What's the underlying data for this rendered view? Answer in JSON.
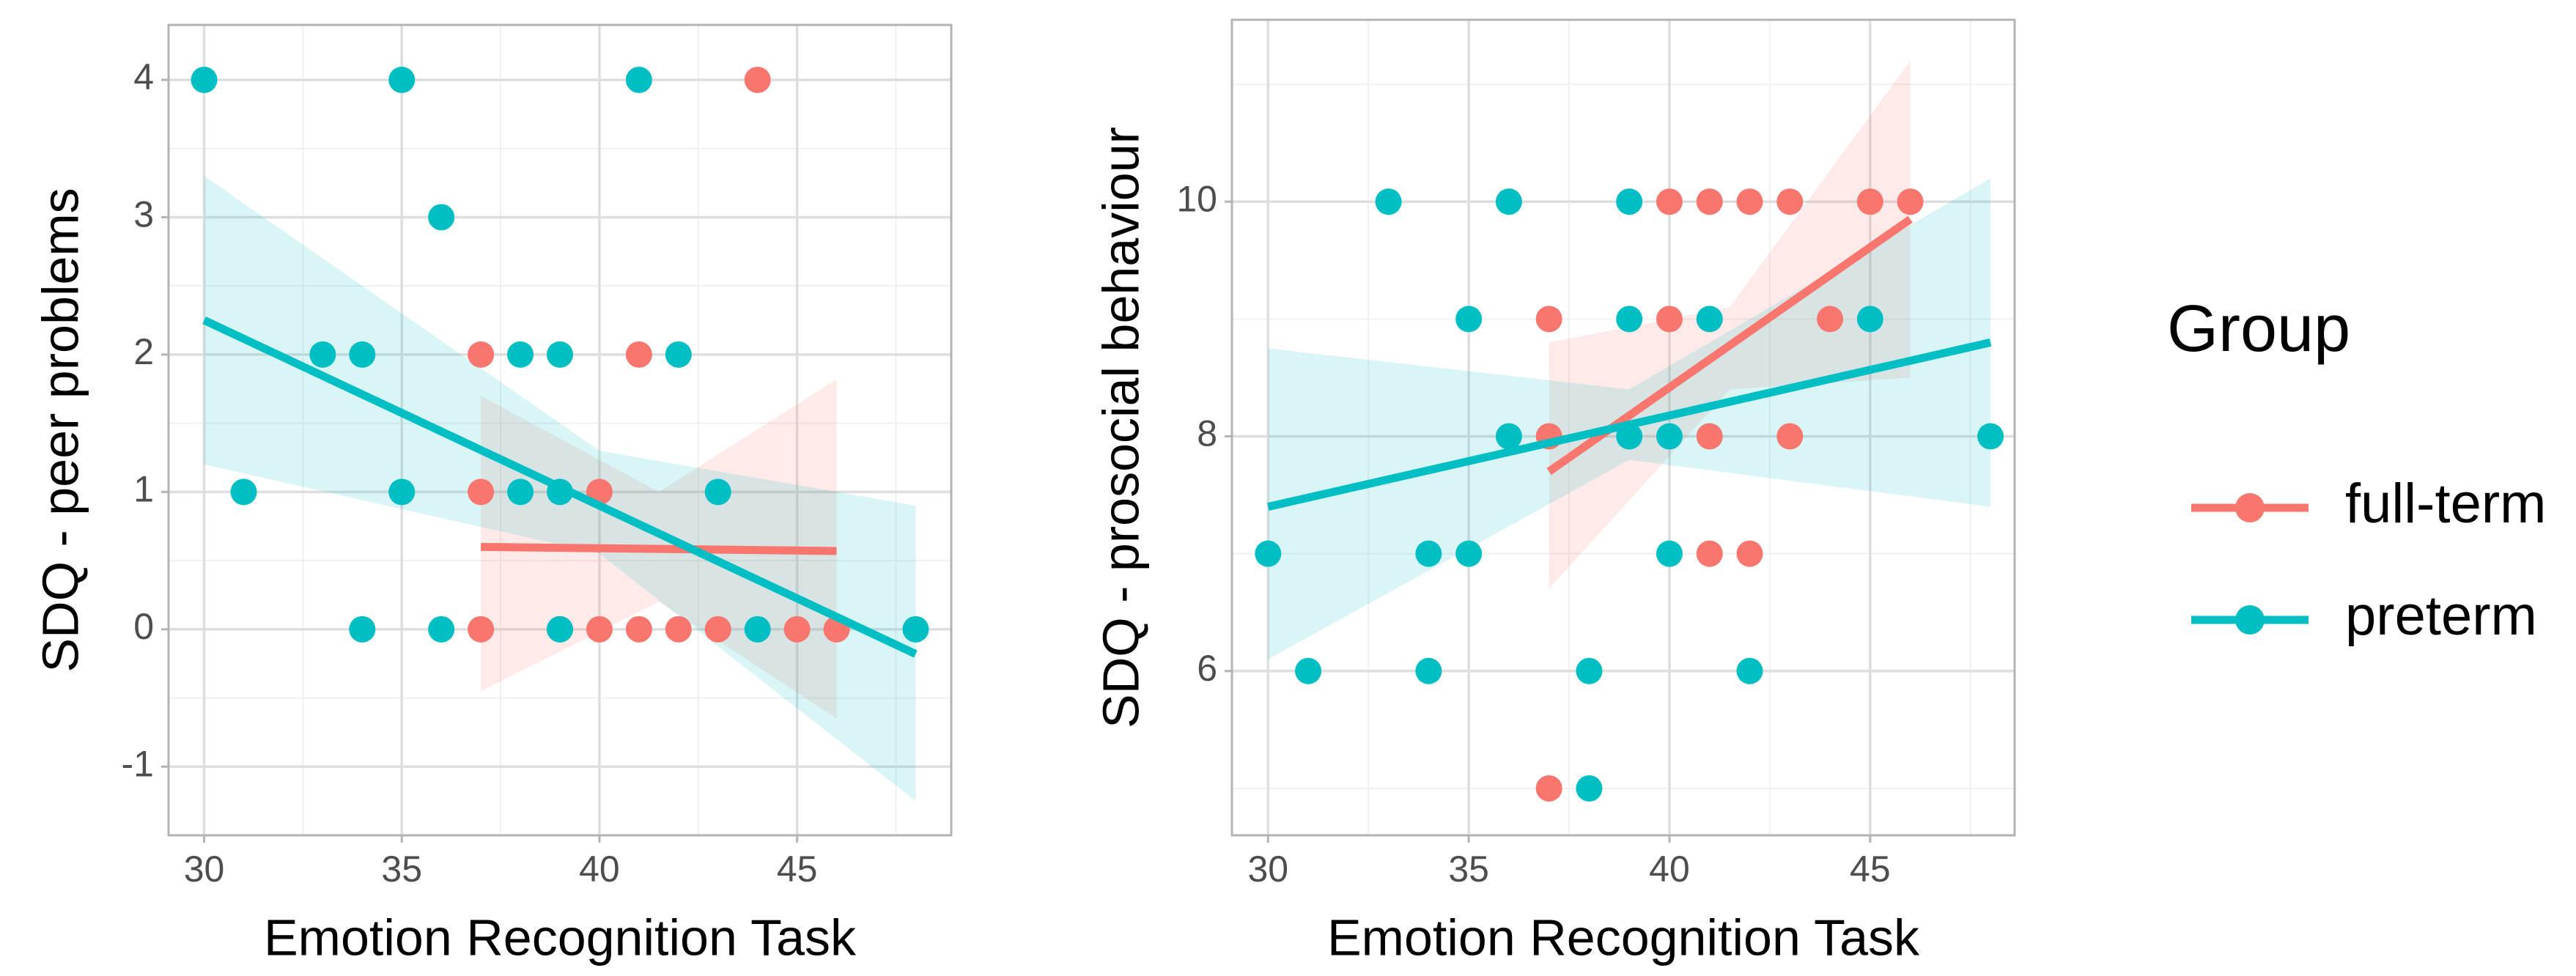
{
  "chart_data": [
    {
      "type": "scatter",
      "x_label": "Emotion Recognition Task",
      "y_label": "SDQ - peer problems",
      "xlim": [
        29.1,
        48.9
      ],
      "ylim": [
        -1.5,
        4.4
      ],
      "xticks": [
        30,
        35,
        40,
        45
      ],
      "yticks": [
        -1,
        0,
        1,
        2,
        3,
        4
      ],
      "grid": true,
      "series": [
        {
          "color": "#F8766D",
          "x": [
            44,
            37,
            41,
            37,
            40,
            37,
            39,
            40,
            41,
            42,
            43,
            45,
            46
          ],
          "y": [
            4,
            2,
            2,
            1,
            1,
            0,
            0,
            0,
            0,
            0,
            0,
            0,
            0
          ],
          "fit": {
            "x": [
              37,
              46
            ],
            "y": [
              0.6,
              0.57
            ]
          },
          "band": {
            "x": [
              37,
              41.5,
              46
            ],
            "lower": [
              -0.45,
              0.2,
              -0.65
            ],
            "upper": [
              1.7,
              1.0,
              1.82
            ]
          }
        },
        {
          "color": "#00BFC4",
          "x": [
            30,
            35,
            41,
            36,
            33,
            34,
            38,
            39,
            42,
            31,
            35,
            38,
            39,
            43,
            34,
            36,
            39,
            44,
            48
          ],
          "y": [
            4,
            4,
            4,
            3,
            2,
            2,
            2,
            2,
            2,
            1,
            1,
            1,
            1,
            1,
            0,
            0,
            0,
            0,
            0
          ],
          "fit": {
            "x": [
              30,
              48
            ],
            "y": [
              2.25,
              -0.18
            ]
          },
          "band": {
            "x": [
              30,
              40,
              48
            ],
            "lower": [
              1.2,
              0.55,
              -1.25
            ],
            "upper": [
              3.3,
              1.3,
              0.9
            ]
          }
        }
      ]
    },
    {
      "type": "scatter",
      "x_label": "Emotion Recognition Task",
      "y_label": "SDQ - prosocial behaviour",
      "xlim": [
        29.1,
        48.6
      ],
      "ylim": [
        4.6,
        11.55
      ],
      "xticks": [
        30,
        35,
        40,
        45
      ],
      "yticks": [
        6,
        8,
        10
      ],
      "grid": true,
      "legend_title": "Group",
      "legend_position": "right",
      "series": [
        {
          "name": "full-term",
          "color": "#F8766D",
          "x": [
            37,
            37,
            37,
            40,
            41,
            42,
            43,
            45,
            46,
            40,
            44,
            41,
            43,
            41,
            42
          ],
          "y": [
            9,
            8,
            5,
            10,
            10,
            10,
            10,
            10,
            10,
            9,
            9,
            8,
            8,
            7,
            7
          ],
          "fit": {
            "x": [
              37,
              46
            ],
            "y": [
              7.7,
              9.85
            ]
          },
          "band": {
            "x": [
              37,
              41.5,
              46
            ],
            "lower": [
              6.7,
              8.4,
              8.5
            ],
            "upper": [
              8.8,
              9.1,
              11.2
            ]
          }
        },
        {
          "name": "preterm",
          "color": "#00BFC4",
          "x": [
            33,
            36,
            39,
            35,
            39,
            41,
            45,
            36,
            39,
            40,
            48,
            30,
            34,
            35,
            40,
            31,
            34,
            38,
            42,
            38
          ],
          "y": [
            10,
            10,
            10,
            9,
            9,
            9,
            9,
            8,
            8,
            8,
            8,
            7,
            7,
            7,
            7,
            6,
            6,
            6,
            6,
            5
          ],
          "fit": {
            "x": [
              30,
              48
            ],
            "y": [
              7.4,
              8.8
            ]
          },
          "band": {
            "x": [
              30,
              39,
              48
            ],
            "lower": [
              6.1,
              7.8,
              7.4
            ],
            "upper": [
              8.75,
              8.4,
              10.2
            ]
          }
        }
      ]
    }
  ]
}
